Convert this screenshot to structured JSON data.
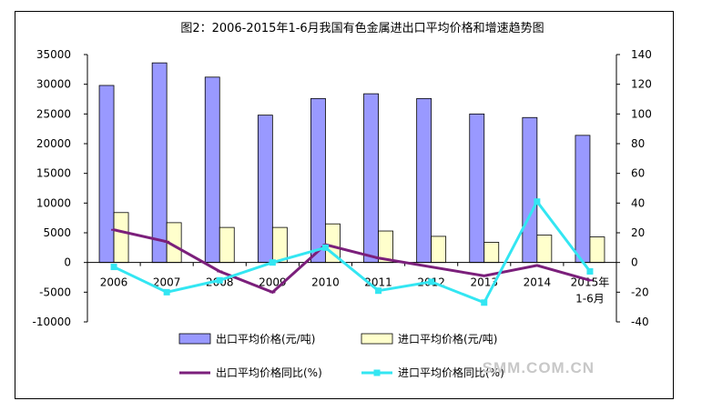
{
  "chart_data": {
    "type": "bar",
    "title": "图2：2006-2015年1-6月我国有色金属进出口平均价格和增速趋势图",
    "categories": [
      "2006",
      "2007",
      "2008",
      "2009",
      "2010",
      "2011",
      "2012",
      "2013",
      "2014",
      "2015年\n1-6月"
    ],
    "category_labels": [
      "2006",
      "2007",
      "2008",
      "2009",
      "2010",
      "2011",
      "2012",
      "2013",
      "2014",
      "2015年"
    ],
    "category_sublabel": "1-6月",
    "y_left": {
      "ylim": [
        -10000,
        35000
      ],
      "ticks": [
        "35000",
        "30000",
        "25000",
        "20000",
        "15000",
        "10000",
        "5000",
        "0",
        "-5000",
        "-10000"
      ]
    },
    "y_right": {
      "ylim": [
        -40,
        140
      ],
      "ticks": [
        "140",
        "120",
        "100",
        "80",
        "60",
        "40",
        "20",
        "0",
        "-20",
        "-40"
      ]
    },
    "series": [
      {
        "name": "出口平均价格(元/吨)",
        "type": "bar",
        "axis": "left",
        "color": "#9999ff",
        "values": [
          29800,
          33600,
          31200,
          24800,
          27600,
          28400,
          27600,
          25000,
          24400,
          21400
        ]
      },
      {
        "name": "进口平均价格(元/吨)",
        "type": "bar",
        "axis": "left",
        "color": "#ffffcc",
        "values": [
          8400,
          6700,
          5900,
          5900,
          6500,
          5300,
          4400,
          3400,
          4600,
          4300
        ]
      },
      {
        "name": "出口平均价格同比(%)",
        "type": "line",
        "axis": "right",
        "color": "#7b1f7b",
        "values": [
          22,
          14,
          -6,
          -20,
          12,
          3,
          -3,
          -9,
          -2,
          -12
        ]
      },
      {
        "name": "进口平均价格同比(%)",
        "type": "line",
        "axis": "right",
        "color": "#33e6f2",
        "values": [
          -3,
          -20,
          -12,
          0,
          10,
          -19,
          -13,
          -27,
          41,
          -6
        ]
      }
    ],
    "legend": [
      "出口平均价格(元/吨)",
      "进口平均价格(元/吨)",
      "出口平均价格同比(%)",
      "进口平均价格同比(%)"
    ],
    "legend_position": "bottom"
  },
  "watermark": "SMM.COM.CN"
}
